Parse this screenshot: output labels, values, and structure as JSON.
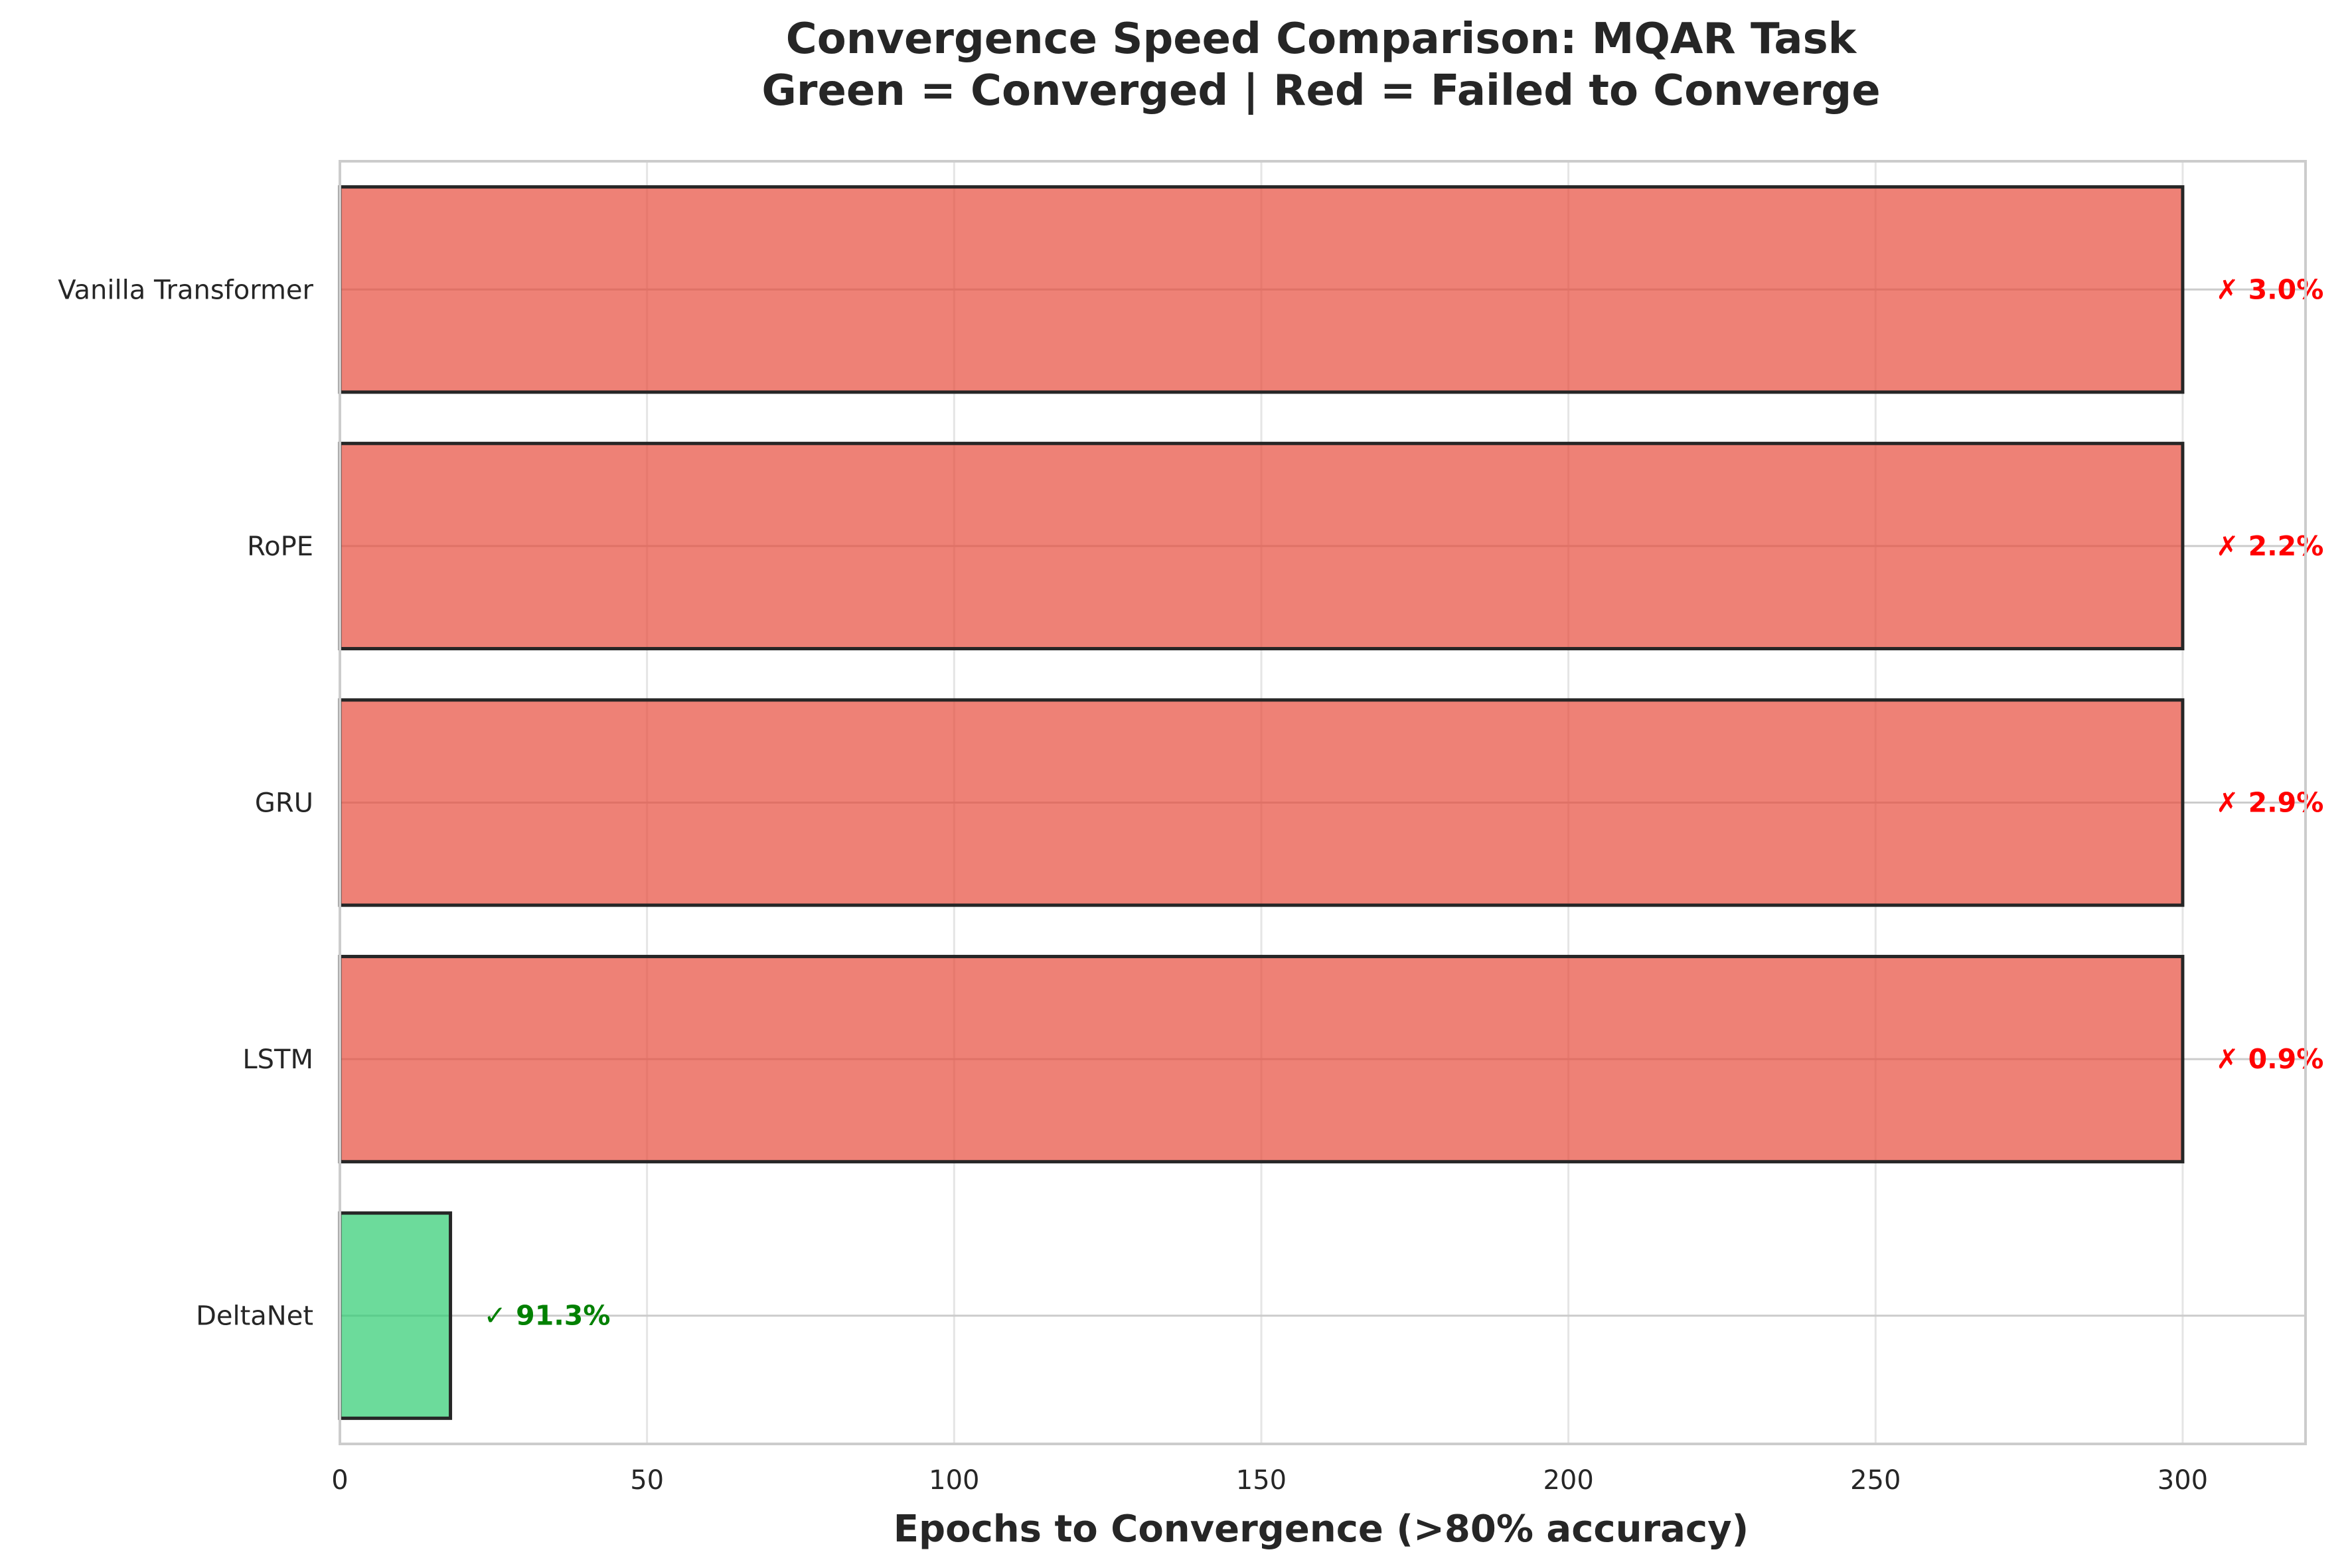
{
  "chart_data": {
    "type": "bar",
    "orientation": "horizontal",
    "title": [
      "Convergence Speed Comparison: MQAR Task",
      "Green = Converged | Red = Failed to Converge"
    ],
    "xlabel": "Epochs to Convergence (>80% accuracy)",
    "ylabel": "",
    "xlim": [
      0,
      320
    ],
    "xticks": [
      0,
      50,
      100,
      150,
      200,
      250,
      300
    ],
    "xtick_labels": [
      "0",
      "50",
      "100",
      "150",
      "200",
      "250",
      "300"
    ],
    "grid": true,
    "categories": [
      "Vanilla Transformer",
      "RoPE",
      "GRU",
      "LSTM",
      "DeltaNet"
    ],
    "values": [
      300,
      300,
      300,
      300,
      18
    ],
    "converged": [
      false,
      false,
      false,
      false,
      true
    ],
    "annotations": [
      "✗ 3.0%",
      "✗ 2.2%",
      "✗ 2.9%",
      "✗ 0.9%",
      "✓ 91.3%"
    ],
    "colors": {
      "converged_bar": "#2ecc71",
      "failed_bar": "#e74c3c",
      "converged_text": "#008000",
      "failed_text": "#ff0000",
      "bar_edge": "#262626",
      "grid": "#e5e5e5",
      "spine": "#cccccc"
    }
  }
}
